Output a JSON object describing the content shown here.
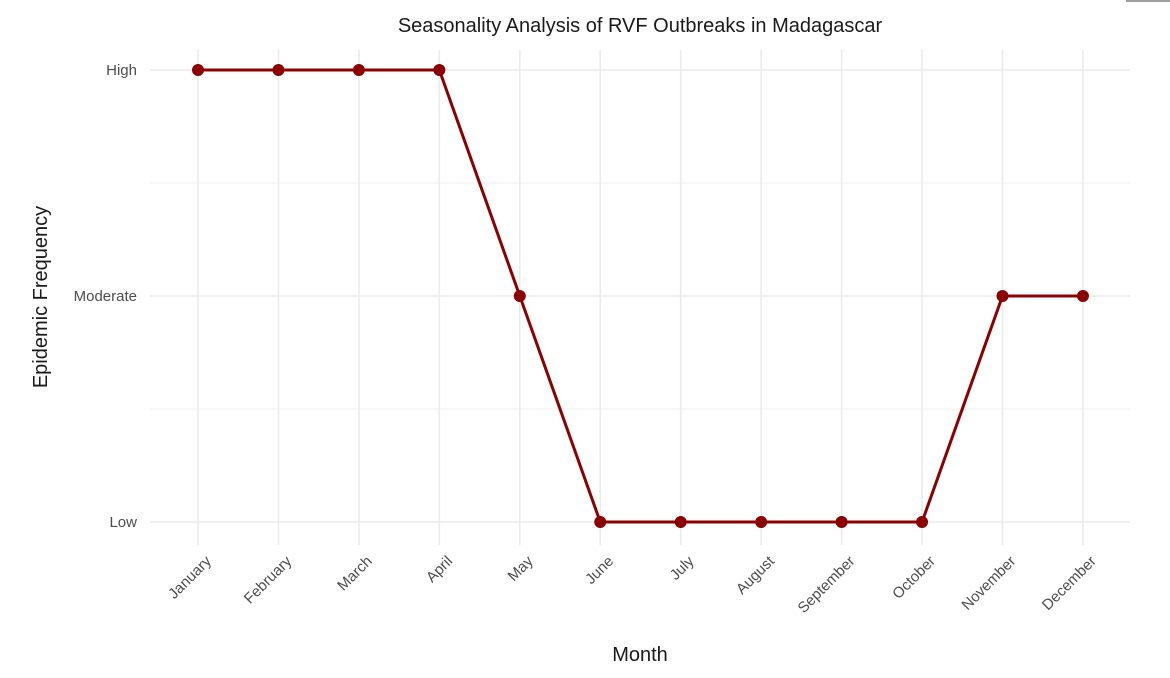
{
  "chart_data": {
    "type": "line",
    "title": "Seasonality Analysis of RVF Outbreaks in Madagascar",
    "xlabel": "Month",
    "ylabel": "Epidemic Frequency",
    "categories": [
      "January",
      "February",
      "March",
      "April",
      "May",
      "June",
      "July",
      "August",
      "September",
      "October",
      "November",
      "December"
    ],
    "y_levels": [
      "Low",
      "Moderate",
      "High"
    ],
    "series": [
      {
        "values": [
          "High",
          "High",
          "High",
          "High",
          "Moderate",
          "Low",
          "Low",
          "Low",
          "Low",
          "Low",
          "Moderate",
          "Moderate"
        ],
        "color": "#8b0000"
      }
    ],
    "grid": true,
    "legend": "none"
  }
}
